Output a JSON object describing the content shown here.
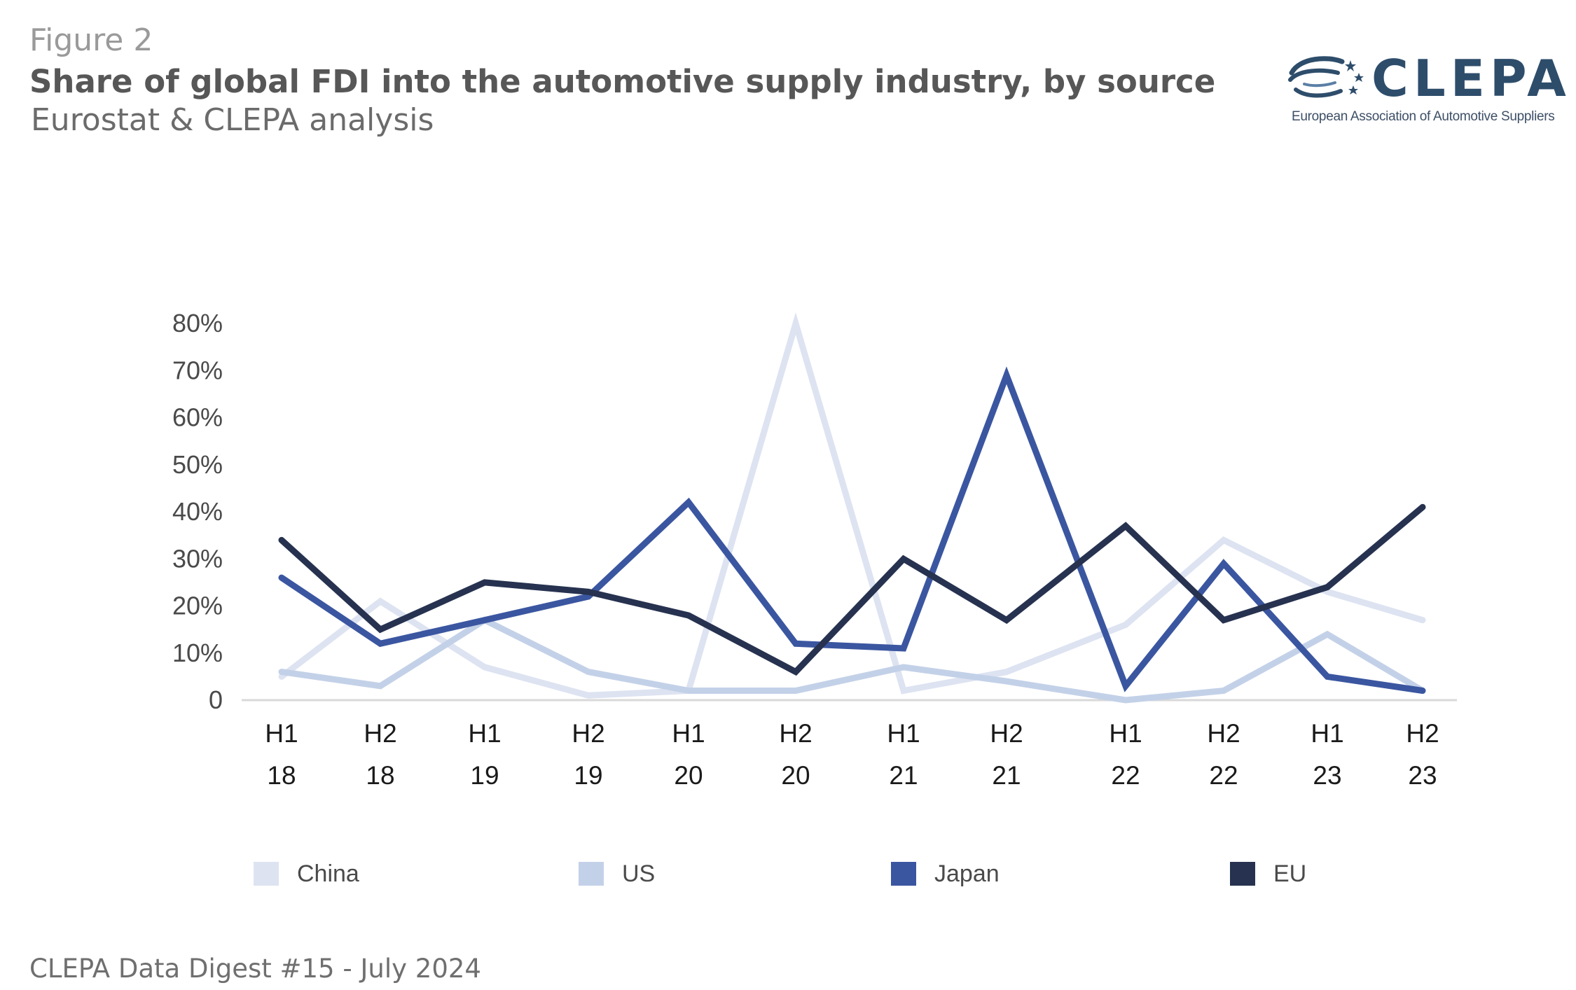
{
  "header": {
    "figure_label": "Figure 2",
    "title": "Share of global FDI into the automotive supply industry, by source",
    "subtitle": "Eurostat & CLEPA analysis"
  },
  "logo": {
    "wordmark": "CLEPA",
    "tagline": "European Association of Automotive Suppliers"
  },
  "footer": {
    "text": "CLEPA Data Digest #15 - July 2024"
  },
  "chart_data": {
    "type": "line",
    "categories": [
      [
        "H1",
        "18"
      ],
      [
        "H2",
        "18"
      ],
      [
        "H1",
        "19"
      ],
      [
        "H2",
        "19"
      ],
      [
        "H1",
        "20"
      ],
      [
        "H2",
        "20"
      ],
      [
        "H1",
        "21"
      ],
      [
        "H2",
        "21"
      ],
      [
        "H1",
        "22"
      ],
      [
        "H2",
        "22"
      ],
      [
        "H1",
        "23"
      ],
      [
        "H2",
        "23"
      ]
    ],
    "y_ticks": [
      "0",
      "10%",
      "20%",
      "30%",
      "40%",
      "50%",
      "60%",
      "70%",
      "80%"
    ],
    "ylim": [
      0,
      80
    ],
    "grid": false,
    "legend_position": "bottom",
    "series": [
      {
        "name": "China",
        "color": "#dde3f1",
        "values": [
          5,
          21,
          7,
          1,
          2,
          80,
          2,
          6,
          16,
          34,
          23,
          17
        ]
      },
      {
        "name": "US",
        "color": "#c3d1e8",
        "values": [
          6,
          3,
          17,
          6,
          2,
          2,
          7,
          4,
          0,
          2,
          14,
          2
        ]
      },
      {
        "name": "Japan",
        "color": "#3b56a0",
        "values": [
          26,
          12,
          17,
          22,
          42,
          12,
          11,
          69,
          3,
          29,
          5,
          2
        ]
      },
      {
        "name": "EU",
        "color": "#26324f",
        "values": [
          34,
          15,
          25,
          23,
          18,
          6,
          30,
          17,
          37,
          17,
          24,
          41
        ]
      }
    ]
  }
}
